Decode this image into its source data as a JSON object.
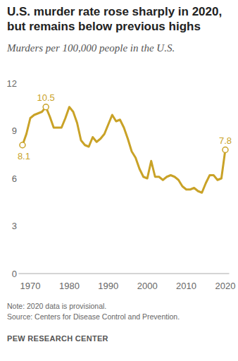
{
  "chart_data": {
    "type": "line",
    "title": "U.S. murder rate rose sharply in 2020, but remains below previous highs",
    "subtitle": "Murders per 100,000 people in the U.S.",
    "note": "Note: 2020 data is provisional.",
    "source": "Source: Centers for Disease Control and Prevention.",
    "credit": "PEW RESEARCH CENTER",
    "x": [
      1968,
      1969,
      1970,
      1971,
      1972,
      1973,
      1974,
      1975,
      1976,
      1977,
      1978,
      1979,
      1980,
      1981,
      1982,
      1983,
      1984,
      1985,
      1986,
      1987,
      1988,
      1989,
      1990,
      1991,
      1992,
      1993,
      1994,
      1995,
      1996,
      1997,
      1998,
      1999,
      2000,
      2001,
      2002,
      2003,
      2004,
      2005,
      2006,
      2007,
      2008,
      2009,
      2010,
      2011,
      2012,
      2013,
      2014,
      2015,
      2016,
      2017,
      2018,
      2019,
      2020
    ],
    "series": [
      {
        "name": "Murders per 100,000 people",
        "color": "#c9a227",
        "values": [
          8.1,
          8.8,
          9.8,
          10.0,
          10.1,
          10.2,
          10.5,
          9.9,
          9.2,
          9.2,
          9.2,
          9.8,
          10.5,
          10.2,
          9.5,
          8.4,
          8.1,
          8.0,
          8.6,
          8.3,
          8.5,
          8.8,
          9.4,
          10.0,
          9.6,
          9.7,
          9.2,
          8.5,
          7.7,
          7.3,
          6.6,
          6.1,
          6.0,
          7.1,
          6.1,
          6.1,
          5.9,
          6.1,
          6.2,
          6.1,
          5.9,
          5.5,
          5.3,
          5.3,
          5.4,
          5.2,
          5.1,
          5.7,
          6.2,
          6.2,
          5.9,
          6.0,
          7.8
        ]
      }
    ],
    "annotations": [
      {
        "x": 1968,
        "value": 8.1
      },
      {
        "x": 1974,
        "value": 10.5
      },
      {
        "x": 2020,
        "value": 7.8
      }
    ],
    "xlim": [
      1967,
      2021
    ],
    "xticks": [
      1970,
      1980,
      1990,
      2000,
      2010,
      2020
    ],
    "ylim": [
      0,
      12
    ],
    "yticks": [
      0,
      3,
      6,
      9,
      12
    ],
    "grid": false
  }
}
